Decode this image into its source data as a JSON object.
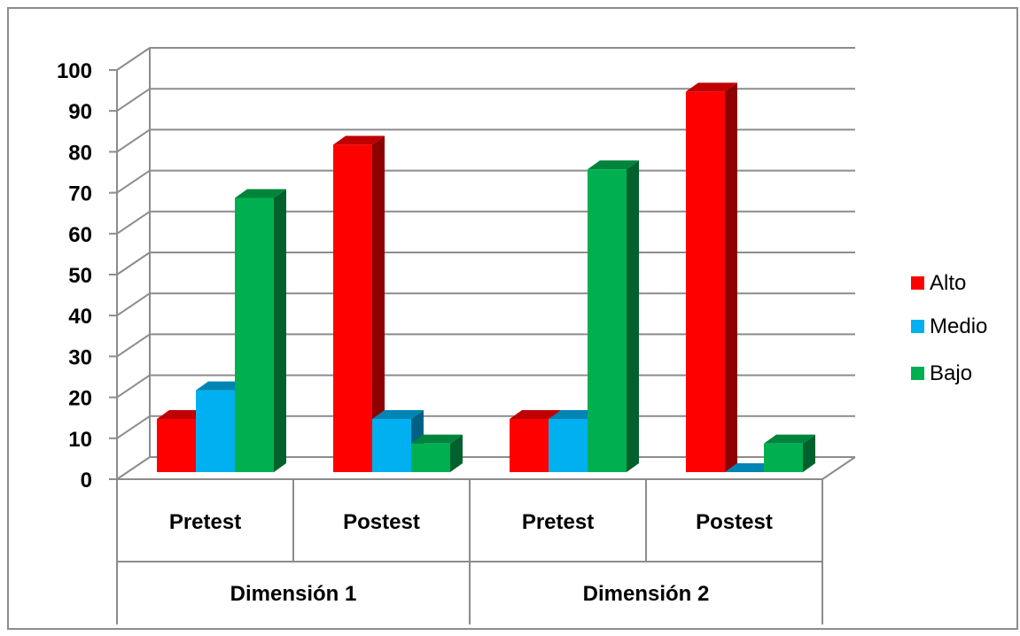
{
  "chart_data": {
    "type": "bar",
    "style": "3d-clustered-column",
    "groups": [
      {
        "label": "Dimensión 1",
        "categories": [
          "Pretest",
          "Postest"
        ]
      },
      {
        "label": "Dimensión 2",
        "categories": [
          "Pretest",
          "Postest"
        ]
      }
    ],
    "categories": [
      "Pretest",
      "Postest",
      "Pretest",
      "Postest"
    ],
    "series": [
      {
        "name": "Alto",
        "color": "#ff0000",
        "values": [
          13,
          80,
          13,
          93
        ]
      },
      {
        "name": "Medio",
        "color": "#00b0f0",
        "values": [
          20,
          13,
          13,
          0
        ]
      },
      {
        "name": "Bajo",
        "color": "#00b050",
        "values": [
          67,
          7,
          74,
          7
        ]
      }
    ],
    "ylim": [
      0,
      100
    ],
    "yticks": [
      "0",
      "10",
      "20",
      "30",
      "40",
      "50",
      "60",
      "70",
      "80",
      "90",
      "100"
    ],
    "grid": true,
    "legend_position": "right",
    "title": "",
    "xlabel": "",
    "ylabel": ""
  }
}
